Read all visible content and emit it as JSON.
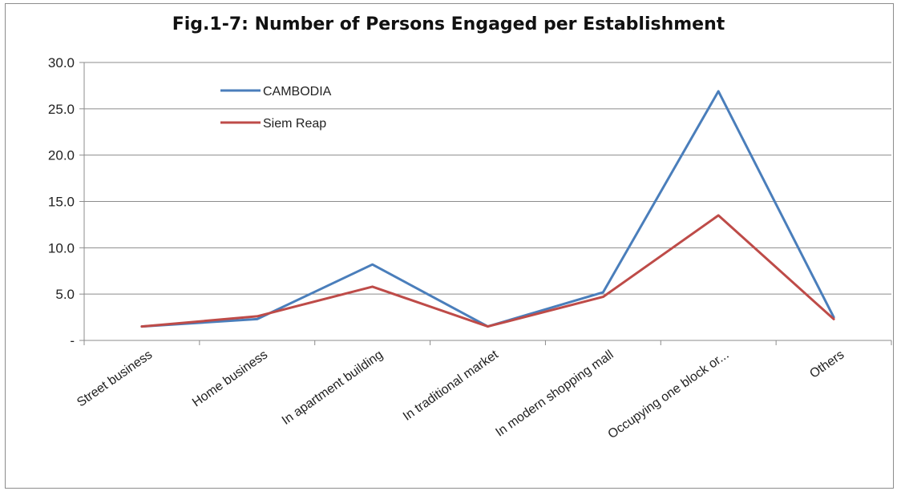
{
  "chart_data": {
    "type": "line",
    "title": "Fig.1-7:  Number of Persons Engaged per Establishment",
    "categories": [
      "Street business",
      "Home business",
      "In apartment building",
      "In traditional market",
      "In modern shopping mall",
      "Occupying one block or...",
      "Others"
    ],
    "series": [
      {
        "name": "CAMBODIA",
        "color": "#4a7ebb",
        "values": [
          1.5,
          2.3,
          8.2,
          1.5,
          5.2,
          26.9,
          2.5
        ]
      },
      {
        "name": "Siem Reap",
        "color": "#be4b48",
        "values": [
          1.5,
          2.6,
          5.8,
          1.5,
          4.7,
          13.5,
          2.3
        ]
      }
    ],
    "yticks": [
      "-",
      "5.0",
      "10.0",
      "15.0",
      "20.0",
      "25.0",
      "30.0"
    ],
    "ylim": [
      0,
      30
    ],
    "grid": true,
    "legend": "top-left"
  }
}
